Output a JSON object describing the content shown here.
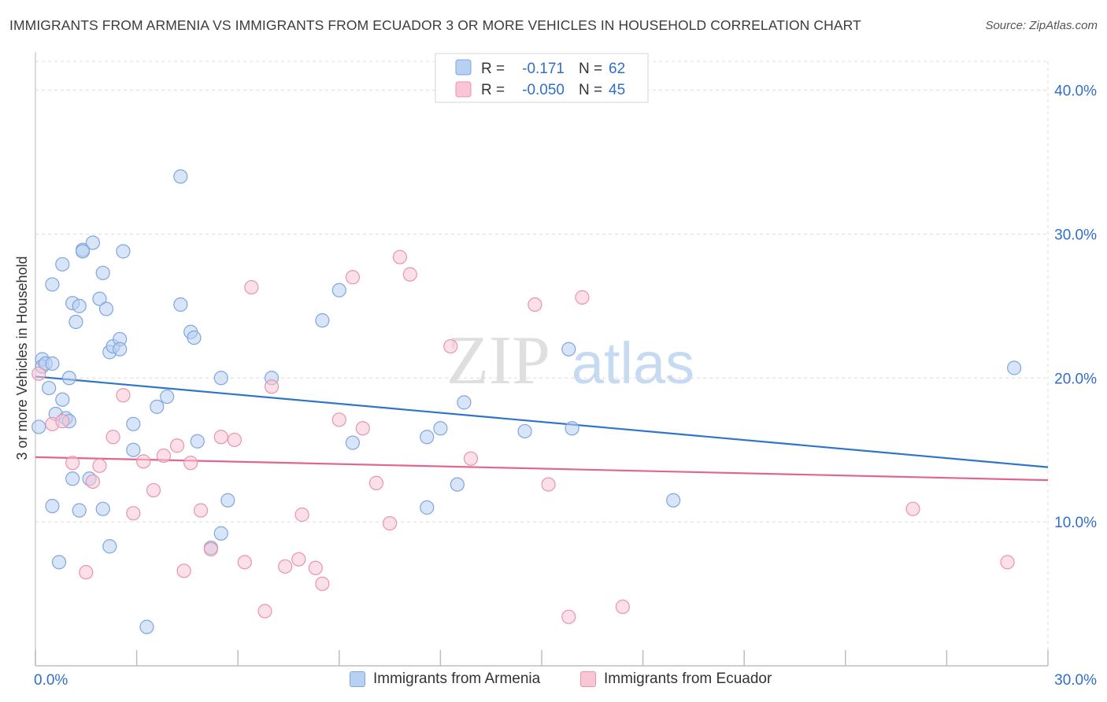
{
  "header": {
    "title": "IMMIGRANTS FROM ARMENIA VS IMMIGRANTS FROM ECUADOR 3 OR MORE VEHICLES IN HOUSEHOLD CORRELATION CHART",
    "source": "Source: ZipAtlas.com"
  },
  "watermark": {
    "part1": "ZIP",
    "part2": "atlas"
  },
  "colors": {
    "armenia_fill": "#b8d0f2",
    "armenia_stroke": "#7fa6de",
    "armenia_line": "#2f74cc",
    "ecuador_fill": "#f8c6d4",
    "ecuador_stroke": "#eb93ae",
    "ecuador_line": "#e06590",
    "value_text": "#2f6fcb",
    "grid": "#dcdcdc"
  },
  "legend": {
    "rows": [
      {
        "r_label": "R =",
        "r_value": "-0.171",
        "n_label": "N =",
        "n_value": "62"
      },
      {
        "r_label": "R =",
        "r_value": "-0.050",
        "n_label": "N =",
        "n_value": "45"
      }
    ]
  },
  "chart_data": {
    "type": "scatter",
    "title": "IMMIGRANTS FROM ARMENIA VS IMMIGRANTS FROM ECUADOR 3 OR MORE VEHICLES IN HOUSEHOLD CORRELATION CHART",
    "xlabel": "",
    "ylabel": "3 or more Vehicles in Household",
    "xlim": [
      0,
      30
    ],
    "ylim": [
      0,
      42
    ],
    "x_tick_labels": [
      "0.0%",
      "30.0%"
    ],
    "y_ticks": [
      10,
      20,
      30,
      40
    ],
    "y_tick_labels": [
      "10.0%",
      "20.0%",
      "30.0%",
      "40.0%"
    ],
    "grid": true,
    "legend_position": "top-center",
    "series": [
      {
        "name": "Immigrants from Armenia",
        "color": "#7fa6de",
        "trend": {
          "x": [
            0,
            30
          ],
          "y": [
            20.1,
            13.8
          ]
        },
        "points": [
          [
            0.1,
            16.6
          ],
          [
            0.2,
            21.3
          ],
          [
            0.2,
            20.8
          ],
          [
            0.3,
            21.0
          ],
          [
            0.4,
            19.3
          ],
          [
            0.5,
            26.5
          ],
          [
            0.5,
            21.0
          ],
          [
            0.5,
            11.1
          ],
          [
            0.6,
            17.5
          ],
          [
            0.7,
            7.2
          ],
          [
            0.8,
            27.9
          ],
          [
            0.8,
            18.5
          ],
          [
            0.9,
            17.2
          ],
          [
            1.0,
            20.0
          ],
          [
            1.0,
            17.0
          ],
          [
            1.1,
            25.2
          ],
          [
            1.1,
            13.0
          ],
          [
            1.2,
            23.9
          ],
          [
            1.3,
            25.0
          ],
          [
            1.3,
            10.8
          ],
          [
            1.4,
            28.9
          ],
          [
            1.4,
            28.8
          ],
          [
            1.6,
            13.0
          ],
          [
            1.7,
            29.4
          ],
          [
            1.9,
            25.5
          ],
          [
            2.0,
            27.3
          ],
          [
            2.0,
            10.9
          ],
          [
            2.1,
            24.8
          ],
          [
            2.2,
            8.3
          ],
          [
            2.2,
            21.8
          ],
          [
            2.3,
            22.2
          ],
          [
            2.5,
            22.7
          ],
          [
            2.5,
            22.0
          ],
          [
            2.6,
            28.8
          ],
          [
            2.9,
            16.8
          ],
          [
            2.9,
            15.0
          ],
          [
            3.3,
            2.7
          ],
          [
            3.6,
            18.0
          ],
          [
            3.9,
            18.7
          ],
          [
            4.3,
            34.0
          ],
          [
            4.3,
            25.1
          ],
          [
            4.6,
            23.2
          ],
          [
            4.7,
            22.8
          ],
          [
            4.8,
            15.6
          ],
          [
            5.2,
            8.2
          ],
          [
            5.5,
            20.0
          ],
          [
            5.5,
            9.2
          ],
          [
            5.7,
            11.5
          ],
          [
            7.0,
            20.0
          ],
          [
            8.5,
            24.0
          ],
          [
            9.0,
            26.1
          ],
          [
            9.4,
            15.5
          ],
          [
            11.6,
            11.0
          ],
          [
            11.6,
            15.9
          ],
          [
            12.0,
            16.5
          ],
          [
            12.5,
            12.6
          ],
          [
            12.7,
            18.3
          ],
          [
            14.5,
            16.3
          ],
          [
            15.8,
            22.0
          ],
          [
            15.9,
            16.5
          ],
          [
            18.9,
            11.5
          ],
          [
            29.0,
            20.7
          ]
        ]
      },
      {
        "name": "Immigrants from Ecuador",
        "color": "#eb93ae",
        "trend": {
          "x": [
            0,
            30
          ],
          "y": [
            14.5,
            12.9
          ]
        },
        "points": [
          [
            0.1,
            20.3
          ],
          [
            0.5,
            16.8
          ],
          [
            0.8,
            17.0
          ],
          [
            1.1,
            14.1
          ],
          [
            1.5,
            6.5
          ],
          [
            1.7,
            12.8
          ],
          [
            1.9,
            13.9
          ],
          [
            2.3,
            15.9
          ],
          [
            2.6,
            18.8
          ],
          [
            2.9,
            10.6
          ],
          [
            3.2,
            14.2
          ],
          [
            3.5,
            12.2
          ],
          [
            3.8,
            14.6
          ],
          [
            4.2,
            15.3
          ],
          [
            4.4,
            6.6
          ],
          [
            4.6,
            14.1
          ],
          [
            4.9,
            10.8
          ],
          [
            5.2,
            8.1
          ],
          [
            5.5,
            15.9
          ],
          [
            5.9,
            15.7
          ],
          [
            6.2,
            7.2
          ],
          [
            6.4,
            26.3
          ],
          [
            6.8,
            3.8
          ],
          [
            7.0,
            19.4
          ],
          [
            7.4,
            6.9
          ],
          [
            7.8,
            7.4
          ],
          [
            7.9,
            10.5
          ],
          [
            8.3,
            6.8
          ],
          [
            8.5,
            5.7
          ],
          [
            9.0,
            17.1
          ],
          [
            9.4,
            27.0
          ],
          [
            9.7,
            16.5
          ],
          [
            10.1,
            12.7
          ],
          [
            10.5,
            9.9
          ],
          [
            10.8,
            28.4
          ],
          [
            11.1,
            27.2
          ],
          [
            12.3,
            22.2
          ],
          [
            12.9,
            14.4
          ],
          [
            14.8,
            25.1
          ],
          [
            15.2,
            12.6
          ],
          [
            15.8,
            3.4
          ],
          [
            16.2,
            25.6
          ],
          [
            17.4,
            4.1
          ],
          [
            26.0,
            10.9
          ],
          [
            28.8,
            7.2
          ]
        ]
      }
    ]
  }
}
